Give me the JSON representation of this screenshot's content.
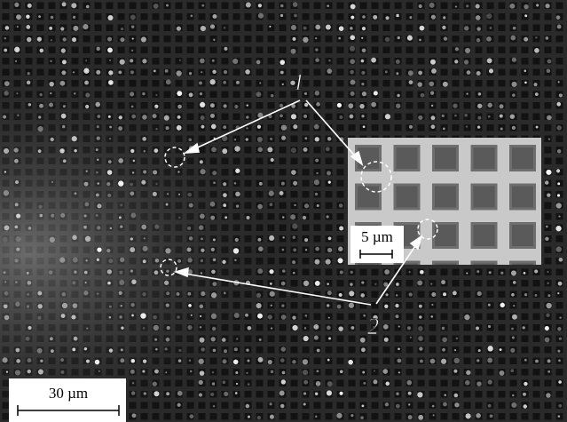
{
  "labels": {
    "marker_1": "1",
    "marker_2": "2"
  },
  "scale_bars": {
    "main": "30 µm",
    "inset": "5 µm"
  }
}
